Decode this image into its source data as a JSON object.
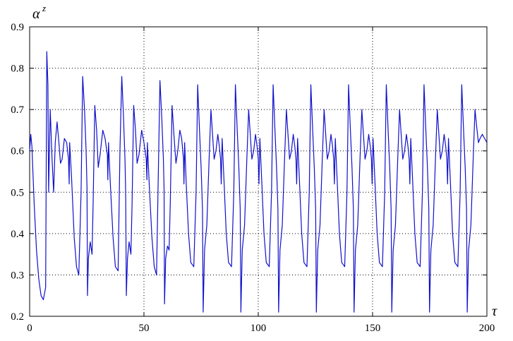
{
  "chart_data": {
    "type": "line",
    "title": "",
    "xlabel": "τ",
    "ylabel": "α",
    "ylabel_superscript": "z",
    "xlim": [
      0,
      200
    ],
    "ylim": [
      0.2,
      0.9
    ],
    "x_ticks": [
      "0",
      "50",
      "100",
      "150",
      "200"
    ],
    "y_ticks": [
      "0.9",
      "0.8",
      "0.7",
      "0.6",
      "0.5",
      "0.4",
      "0.3",
      "0.2"
    ],
    "grid": true,
    "grid_style": "dotted",
    "line_color": "#1010cc",
    "series": [
      {
        "values": [
          [
            0.0,
            0.6
          ],
          [
            0.5,
            0.64
          ],
          [
            1.0,
            0.61
          ],
          [
            2.0,
            0.47
          ],
          [
            3.0,
            0.36
          ],
          [
            4.0,
            0.29
          ],
          [
            5.0,
            0.25
          ],
          [
            6.0,
            0.24
          ],
          [
            7.0,
            0.27
          ],
          [
            7.5,
            0.84
          ],
          [
            8.0,
            0.76
          ],
          [
            8.3,
            0.5
          ],
          [
            9.0,
            0.7
          ],
          [
            9.8,
            0.58
          ],
          [
            10.5,
            0.5
          ],
          [
            11.2,
            0.62
          ],
          [
            12.0,
            0.67
          ],
          [
            12.8,
            0.62
          ],
          [
            13.5,
            0.57
          ],
          [
            14.2,
            0.58
          ],
          [
            15.2,
            0.63
          ],
          [
            16.2,
            0.62
          ],
          [
            17.0,
            0.58
          ],
          [
            17.3,
            0.52
          ],
          [
            17.5,
            0.62
          ],
          [
            18.3,
            0.54
          ],
          [
            19.5,
            0.39
          ],
          [
            20.5,
            0.32
          ],
          [
            21.5,
            0.3
          ],
          [
            22.5,
            0.5
          ],
          [
            23.2,
            0.78
          ],
          [
            24.0,
            0.7
          ],
          [
            24.7,
            0.6
          ],
          [
            25.1,
            0.51
          ],
          [
            25.3,
            0.25
          ],
          [
            25.7,
            0.34
          ],
          [
            26.5,
            0.38
          ],
          [
            27.3,
            0.35
          ],
          [
            27.8,
            0.48
          ],
          [
            28.5,
            0.71
          ],
          [
            29.3,
            0.65
          ],
          [
            30.0,
            0.56
          ],
          [
            30.8,
            0.59
          ],
          [
            32.0,
            0.65
          ],
          [
            33.0,
            0.63
          ],
          [
            34.0,
            0.59
          ],
          [
            34.2,
            0.53
          ],
          [
            34.5,
            0.62
          ],
          [
            35.3,
            0.52
          ],
          [
            36.5,
            0.39
          ],
          [
            37.5,
            0.32
          ],
          [
            38.7,
            0.31
          ],
          [
            39.5,
            0.6
          ],
          [
            40.3,
            0.78
          ],
          [
            41.0,
            0.69
          ],
          [
            41.7,
            0.58
          ],
          [
            42.0,
            0.5
          ],
          [
            42.3,
            0.25
          ],
          [
            42.8,
            0.34
          ],
          [
            43.5,
            0.38
          ],
          [
            44.3,
            0.35
          ],
          [
            44.8,
            0.47
          ],
          [
            45.5,
            0.71
          ],
          [
            46.3,
            0.65
          ],
          [
            47.0,
            0.57
          ],
          [
            47.8,
            0.59
          ],
          [
            49.0,
            0.65
          ],
          [
            50.0,
            0.62
          ],
          [
            51.0,
            0.58
          ],
          [
            51.3,
            0.53
          ],
          [
            51.5,
            0.62
          ],
          [
            52.3,
            0.52
          ],
          [
            53.5,
            0.39
          ],
          [
            54.5,
            0.32
          ],
          [
            55.5,
            0.3
          ],
          [
            56.3,
            0.55
          ],
          [
            57.0,
            0.77
          ],
          [
            57.8,
            0.68
          ],
          [
            58.5,
            0.58
          ],
          [
            58.8,
            0.51
          ],
          [
            59.0,
            0.23
          ],
          [
            59.5,
            0.34
          ],
          [
            60.3,
            0.37
          ],
          [
            61.0,
            0.36
          ],
          [
            61.5,
            0.47
          ],
          [
            62.3,
            0.71
          ],
          [
            63.1,
            0.64
          ],
          [
            64.0,
            0.57
          ],
          [
            64.8,
            0.6
          ],
          [
            65.7,
            0.65
          ],
          [
            66.5,
            0.63
          ],
          [
            67.3,
            0.58
          ],
          [
            67.5,
            0.52
          ],
          [
            67.8,
            0.62
          ],
          [
            68.5,
            0.52
          ],
          [
            69.5,
            0.4
          ],
          [
            70.5,
            0.33
          ],
          [
            71.8,
            0.32
          ],
          [
            72.8,
            0.5
          ],
          [
            73.5,
            0.76
          ],
          [
            74.3,
            0.65
          ],
          [
            75.0,
            0.56
          ],
          [
            75.6,
            0.46
          ],
          [
            75.9,
            0.21
          ],
          [
            76.5,
            0.36
          ],
          [
            77.5,
            0.42
          ],
          [
            78.5,
            0.58
          ],
          [
            79.3,
            0.7
          ],
          [
            80.0,
            0.64
          ],
          [
            80.7,
            0.58
          ],
          [
            81.5,
            0.6
          ],
          [
            82.3,
            0.64
          ],
          [
            83.0,
            0.61
          ],
          [
            83.5,
            0.58
          ],
          [
            83.8,
            0.52
          ],
          [
            84.2,
            0.63
          ],
          [
            85.0,
            0.53
          ],
          [
            86.0,
            0.4
          ],
          [
            87.0,
            0.33
          ],
          [
            88.3,
            0.32
          ],
          [
            89.3,
            0.5
          ],
          [
            90.0,
            0.76
          ],
          [
            90.8,
            0.65
          ],
          [
            91.5,
            0.56
          ],
          [
            92.1,
            0.46
          ],
          [
            92.4,
            0.21
          ],
          [
            93.0,
            0.36
          ],
          [
            94.0,
            0.42
          ],
          [
            95.0,
            0.58
          ],
          [
            95.8,
            0.7
          ],
          [
            96.5,
            0.64
          ],
          [
            97.2,
            0.58
          ],
          [
            98.0,
            0.6
          ],
          [
            98.8,
            0.64
          ],
          [
            99.5,
            0.61
          ],
          [
            100.0,
            0.58
          ],
          [
            100.3,
            0.52
          ],
          [
            100.7,
            0.63
          ],
          [
            101.5,
            0.53
          ],
          [
            102.5,
            0.4
          ],
          [
            103.5,
            0.33
          ],
          [
            104.8,
            0.32
          ],
          [
            105.8,
            0.5
          ],
          [
            106.5,
            0.76
          ],
          [
            107.3,
            0.65
          ],
          [
            108.0,
            0.56
          ],
          [
            108.6,
            0.46
          ],
          [
            108.9,
            0.21
          ],
          [
            109.5,
            0.36
          ],
          [
            110.5,
            0.42
          ],
          [
            111.5,
            0.58
          ],
          [
            112.3,
            0.7
          ],
          [
            113.0,
            0.64
          ],
          [
            113.7,
            0.58
          ],
          [
            114.5,
            0.6
          ],
          [
            115.3,
            0.64
          ],
          [
            116.0,
            0.61
          ],
          [
            116.5,
            0.58
          ],
          [
            116.8,
            0.52
          ],
          [
            117.2,
            0.63
          ],
          [
            118.0,
            0.53
          ],
          [
            119.0,
            0.4
          ],
          [
            120.0,
            0.33
          ],
          [
            121.3,
            0.32
          ],
          [
            122.3,
            0.5
          ],
          [
            123.0,
            0.76
          ],
          [
            123.8,
            0.65
          ],
          [
            124.5,
            0.56
          ],
          [
            125.1,
            0.46
          ],
          [
            125.4,
            0.21
          ],
          [
            126.0,
            0.36
          ],
          [
            127.0,
            0.42
          ],
          [
            128.0,
            0.58
          ],
          [
            128.8,
            0.7
          ],
          [
            129.5,
            0.64
          ],
          [
            130.2,
            0.58
          ],
          [
            131.0,
            0.6
          ],
          [
            131.8,
            0.64
          ],
          [
            132.5,
            0.61
          ],
          [
            133.0,
            0.58
          ],
          [
            133.3,
            0.52
          ],
          [
            133.7,
            0.63
          ],
          [
            134.5,
            0.53
          ],
          [
            135.5,
            0.4
          ],
          [
            136.5,
            0.33
          ],
          [
            137.8,
            0.32
          ],
          [
            138.8,
            0.5
          ],
          [
            139.5,
            0.76
          ],
          [
            140.3,
            0.65
          ],
          [
            141.0,
            0.56
          ],
          [
            141.6,
            0.46
          ],
          [
            141.9,
            0.21
          ],
          [
            142.5,
            0.36
          ],
          [
            143.5,
            0.42
          ],
          [
            144.5,
            0.58
          ],
          [
            145.3,
            0.7
          ],
          [
            146.0,
            0.64
          ],
          [
            146.7,
            0.58
          ],
          [
            147.5,
            0.6
          ],
          [
            148.3,
            0.64
          ],
          [
            149.0,
            0.61
          ],
          [
            149.5,
            0.58
          ],
          [
            149.8,
            0.52
          ],
          [
            150.2,
            0.63
          ],
          [
            151.0,
            0.53
          ],
          [
            152.0,
            0.4
          ],
          [
            153.0,
            0.33
          ],
          [
            154.3,
            0.32
          ],
          [
            155.3,
            0.5
          ],
          [
            156.0,
            0.76
          ],
          [
            156.8,
            0.65
          ],
          [
            157.5,
            0.56
          ],
          [
            158.1,
            0.46
          ],
          [
            158.4,
            0.21
          ],
          [
            159.0,
            0.36
          ],
          [
            160.0,
            0.42
          ],
          [
            161.0,
            0.58
          ],
          [
            161.8,
            0.7
          ],
          [
            162.5,
            0.64
          ],
          [
            163.2,
            0.58
          ],
          [
            164.0,
            0.6
          ],
          [
            164.8,
            0.64
          ],
          [
            165.5,
            0.61
          ],
          [
            166.0,
            0.58
          ],
          [
            166.3,
            0.52
          ],
          [
            166.7,
            0.63
          ],
          [
            167.5,
            0.53
          ],
          [
            168.5,
            0.4
          ],
          [
            169.5,
            0.33
          ],
          [
            170.8,
            0.32
          ],
          [
            171.8,
            0.5
          ],
          [
            172.5,
            0.76
          ],
          [
            173.3,
            0.65
          ],
          [
            174.0,
            0.56
          ],
          [
            174.6,
            0.46
          ],
          [
            174.9,
            0.21
          ],
          [
            175.5,
            0.36
          ],
          [
            176.5,
            0.42
          ],
          [
            177.5,
            0.58
          ],
          [
            178.3,
            0.7
          ],
          [
            179.0,
            0.64
          ],
          [
            179.7,
            0.58
          ],
          [
            180.5,
            0.6
          ],
          [
            181.3,
            0.64
          ],
          [
            182.0,
            0.61
          ],
          [
            182.5,
            0.58
          ],
          [
            182.8,
            0.52
          ],
          [
            183.2,
            0.63
          ],
          [
            184.0,
            0.53
          ],
          [
            185.0,
            0.4
          ],
          [
            186.0,
            0.33
          ],
          [
            187.3,
            0.32
          ],
          [
            188.3,
            0.5
          ],
          [
            189.0,
            0.76
          ],
          [
            189.8,
            0.65
          ],
          [
            190.5,
            0.56
          ],
          [
            191.1,
            0.46
          ],
          [
            191.4,
            0.21
          ],
          [
            192.0,
            0.36
          ],
          [
            193.0,
            0.42
          ],
          [
            194.0,
            0.58
          ],
          [
            194.8,
            0.7
          ],
          [
            195.5,
            0.66
          ],
          [
            196.3,
            0.62
          ],
          [
            197.0,
            0.63
          ],
          [
            198.0,
            0.64
          ],
          [
            199.0,
            0.63
          ],
          [
            200.0,
            0.62
          ]
        ]
      }
    ]
  }
}
